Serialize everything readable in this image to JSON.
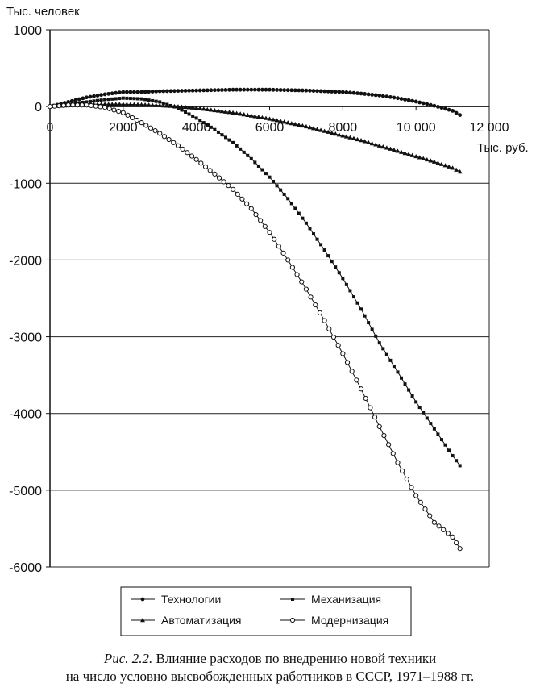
{
  "chart_data": {
    "type": "line",
    "ylabel": "Тыс. человек",
    "xlabel": "Тыс. руб.",
    "xlim": [
      0,
      12000
    ],
    "ylim": [
      -6000,
      1000
    ],
    "x_ticks": [
      0,
      2000,
      4000,
      6000,
      8000,
      10000,
      12000
    ],
    "x_tick_labels": [
      "0",
      "2000",
      "4000",
      "6000",
      "8000",
      "10 000",
      "12 000"
    ],
    "y_ticks": [
      1000,
      0,
      -1000,
      -2000,
      -3000,
      -4000,
      -5000,
      -6000
    ],
    "y_tick_labels": [
      "1000",
      "0",
      "-1000",
      "-2000",
      "-3000",
      "-4000",
      "-5000",
      "-6000"
    ],
    "grid": "horizontal",
    "legend_position": "bottom",
    "series": [
      {
        "name": "Технологии",
        "marker": "filled-circle",
        "x": [
          0,
          500,
          1000,
          1500,
          2000,
          2500,
          3000,
          3500,
          4000,
          4500,
          5000,
          5500,
          6000,
          6500,
          7000,
          7500,
          8000,
          8500,
          9000,
          9500,
          10000,
          10500,
          11000,
          11200
        ],
        "y": [
          0,
          60,
          120,
          160,
          190,
          190,
          200,
          205,
          210,
          215,
          220,
          220,
          220,
          215,
          210,
          200,
          190,
          170,
          145,
          110,
          65,
          10,
          -55,
          -110
        ]
      },
      {
        "name": "Механизация",
        "marker": "filled-square",
        "x": [
          0,
          500,
          1000,
          1500,
          2000,
          2500,
          3000,
          3500,
          4000,
          4500,
          5000,
          5500,
          6000,
          6500,
          7000,
          7500,
          8000,
          8500,
          9000,
          9500,
          10000,
          10500,
          11000,
          11200
        ],
        "y": [
          0,
          30,
          60,
          90,
          110,
          100,
          60,
          -20,
          -150,
          -300,
          -470,
          -680,
          -920,
          -1200,
          -1520,
          -1870,
          -2240,
          -2640,
          -3080,
          -3460,
          -3850,
          -4200,
          -4550,
          -4680
        ]
      },
      {
        "name": "Автоматизация",
        "marker": "filled-triangle",
        "x": [
          0,
          500,
          1000,
          1500,
          2000,
          2500,
          3000,
          3500,
          4000,
          4500,
          5000,
          5500,
          6000,
          6500,
          7000,
          7500,
          8000,
          8500,
          9000,
          9500,
          10000,
          10500,
          11000,
          11200
        ],
        "y": [
          0,
          15,
          25,
          30,
          30,
          25,
          15,
          0,
          -20,
          -50,
          -80,
          -120,
          -160,
          -210,
          -260,
          -320,
          -380,
          -440,
          -510,
          -580,
          -650,
          -720,
          -800,
          -850
        ]
      },
      {
        "name": "Модернизация",
        "marker": "open-circle",
        "x": [
          0,
          500,
          1000,
          1500,
          2000,
          2500,
          3000,
          3500,
          4000,
          4500,
          5000,
          5500,
          6000,
          6500,
          7000,
          7500,
          8000,
          8500,
          9000,
          9500,
          10000,
          10500,
          11000,
          11200
        ],
        "y": [
          0,
          20,
          20,
          -10,
          -80,
          -210,
          -350,
          -510,
          -690,
          -880,
          -1080,
          -1330,
          -1640,
          -2000,
          -2380,
          -2790,
          -3220,
          -3680,
          -4170,
          -4640,
          -5070,
          -5420,
          -5610,
          -5760
        ]
      }
    ]
  },
  "caption": {
    "prefix": "Рис. 2.2.",
    "line1": "Влияние расходов по внедрению новой техники",
    "line2": "на число условно высвобожденных работников в СССР, 1971–1988 гг."
  }
}
